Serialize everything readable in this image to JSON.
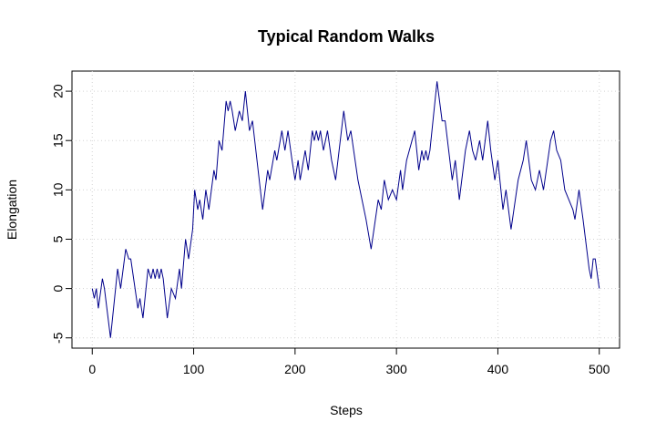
{
  "chart_data": {
    "type": "line",
    "title": "Typical Random Walks",
    "x_label": "Steps",
    "y_label": "Elongation",
    "x": [
      0,
      2,
      4,
      6,
      10,
      12,
      18,
      25,
      28,
      33,
      36,
      38,
      45,
      47,
      50,
      55,
      58,
      60,
      62,
      64,
      66,
      68,
      70,
      72,
      74,
      78,
      82,
      86,
      88,
      92,
      95,
      99,
      101,
      104,
      106,
      109,
      112,
      115,
      120,
      122,
      125,
      128,
      132,
      134,
      136,
      138,
      141,
      145,
      148,
      151,
      155,
      158,
      168,
      173,
      175,
      180,
      182,
      187,
      190,
      193,
      197,
      200,
      203,
      205,
      210,
      213,
      217,
      219,
      221,
      223,
      225,
      228,
      232,
      236,
      240,
      248,
      252,
      255,
      262,
      270,
      275,
      282,
      285,
      288,
      292,
      296,
      300,
      304,
      306,
      310,
      318,
      322,
      325,
      327,
      329,
      331,
      333,
      340,
      345,
      348,
      355,
      358,
      362,
      368,
      372,
      375,
      378,
      382,
      385,
      390,
      393,
      397,
      400,
      405,
      408,
      413,
      420,
      425,
      428,
      433,
      437,
      441,
      445,
      452,
      455,
      458,
      462,
      466,
      470,
      474,
      476,
      480,
      484,
      490,
      492,
      494,
      496,
      500
    ],
    "values": [
      0,
      -1,
      0,
      -2,
      1,
      0,
      -5,
      2,
      0,
      4,
      3,
      3,
      -2,
      -1,
      -3,
      2,
      1,
      2,
      1,
      2,
      1,
      2,
      1,
      -1,
      -3,
      0,
      -1,
      2,
      0,
      5,
      3,
      6,
      10,
      8,
      9,
      7,
      10,
      8,
      12,
      11,
      15,
      14,
      19,
      18,
      19,
      18,
      16,
      18,
      17,
      20,
      16,
      17,
      8,
      12,
      11,
      14,
      13,
      16,
      14,
      16,
      13,
      11,
      13,
      11,
      14,
      12,
      16,
      15,
      16,
      15,
      16,
      14,
      16,
      13,
      11,
      18,
      15,
      16,
      11,
      7,
      4,
      9,
      8,
      11,
      9,
      10,
      9,
      12,
      10,
      13,
      16,
      12,
      14,
      13,
      14,
      13,
      14,
      21,
      17,
      17,
      11,
      13,
      9,
      14,
      16,
      14,
      13,
      15,
      13,
      17,
      14,
      11,
      13,
      8,
      10,
      6,
      11,
      13,
      15,
      11,
      10,
      12,
      10,
      15,
      16,
      14,
      13,
      10,
      9,
      8,
      7,
      10,
      7,
      2,
      1,
      3,
      3,
      0
    ],
    "color": "#00008b",
    "xlim": [
      -20,
      520
    ],
    "ylim": [
      -6.04,
      22.04
    ],
    "xticks": [
      0,
      100,
      200,
      300,
      400,
      500
    ],
    "yticks": [
      -5,
      0,
      5,
      10,
      15,
      20
    ],
    "grid": true
  }
}
